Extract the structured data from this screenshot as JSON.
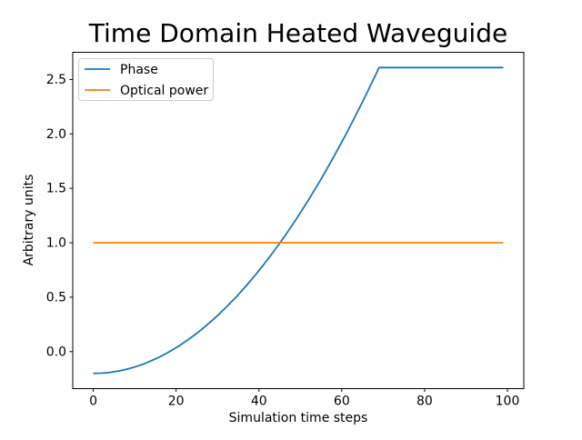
{
  "chart_data": {
    "type": "line",
    "title": "Time Domain Heated Waveguide",
    "xlabel": "Simulation time steps",
    "ylabel": "Arbitrary units",
    "grid": false,
    "legend_position": "upper left",
    "xlim": [
      -4.95,
      103.95
    ],
    "ylim": [
      -0.34,
      2.75
    ],
    "xticks": [
      0,
      20,
      40,
      60,
      80,
      100
    ],
    "xtick_labels": [
      "0",
      "20",
      "40",
      "60",
      "80",
      "100"
    ],
    "yticks": [
      0.0,
      0.5,
      1.0,
      1.5,
      2.0,
      2.5
    ],
    "ytick_labels": [
      "0.0",
      "0.5",
      "1.0",
      "1.5",
      "2.0",
      "2.5"
    ],
    "x": [
      0,
      1,
      2,
      3,
      4,
      5,
      6,
      7,
      8,
      9,
      10,
      11,
      12,
      13,
      14,
      15,
      16,
      17,
      18,
      19,
      20,
      21,
      22,
      23,
      24,
      25,
      26,
      27,
      28,
      29,
      30,
      31,
      32,
      33,
      34,
      35,
      36,
      37,
      38,
      39,
      40,
      41,
      42,
      43,
      44,
      45,
      46,
      47,
      48,
      49,
      50,
      51,
      52,
      53,
      54,
      55,
      56,
      57,
      58,
      59,
      60,
      61,
      62,
      63,
      64,
      65,
      66,
      67,
      68,
      69,
      70,
      71,
      72,
      73,
      74,
      75,
      76,
      77,
      78,
      79,
      80,
      81,
      82,
      83,
      84,
      85,
      86,
      87,
      88,
      89,
      90,
      91,
      92,
      93,
      94,
      95,
      96,
      97,
      98,
      99
    ],
    "series": [
      {
        "name": "Phase",
        "color": "#1f77b4",
        "values": [
          -0.2,
          -0.199,
          -0.198,
          -0.195,
          -0.191,
          -0.185,
          -0.179,
          -0.171,
          -0.162,
          -0.152,
          -0.141,
          -0.129,
          -0.115,
          -0.1,
          -0.084,
          -0.067,
          -0.049,
          -0.029,
          -0.009,
          0.013,
          0.036,
          0.06,
          0.086,
          0.112,
          0.14,
          0.169,
          0.199,
          0.23,
          0.263,
          0.296,
          0.331,
          0.367,
          0.404,
          0.443,
          0.482,
          0.523,
          0.565,
          0.608,
          0.652,
          0.698,
          0.744,
          0.792,
          0.841,
          0.891,
          0.943,
          0.995,
          1.049,
          1.104,
          1.16,
          1.217,
          1.276,
          1.335,
          1.396,
          1.458,
          1.521,
          1.585,
          1.651,
          1.718,
          1.786,
          1.855,
          1.925,
          1.996,
          2.069,
          2.143,
          2.218,
          2.294,
          2.371,
          2.45,
          2.529,
          2.61,
          2.61,
          2.61,
          2.61,
          2.61,
          2.61,
          2.61,
          2.61,
          2.61,
          2.61,
          2.61,
          2.61,
          2.61,
          2.61,
          2.61,
          2.61,
          2.61,
          2.61,
          2.61,
          2.61,
          2.61,
          2.61,
          2.61,
          2.61,
          2.61,
          2.61,
          2.61,
          2.61,
          2.61,
          2.61,
          2.61
        ]
      },
      {
        "name": "Optical power",
        "color": "#ff7f0e",
        "values": [
          1.0,
          1.0,
          1.0,
          1.0,
          1.0,
          1.0,
          1.0,
          1.0,
          1.0,
          1.0,
          1.0,
          1.0,
          1.0,
          1.0,
          1.0,
          1.0,
          1.0,
          1.0,
          1.0,
          1.0,
          1.0,
          1.0,
          1.0,
          1.0,
          1.0,
          1.0,
          1.0,
          1.0,
          1.0,
          1.0,
          1.0,
          1.0,
          1.0,
          1.0,
          1.0,
          1.0,
          1.0,
          1.0,
          1.0,
          1.0,
          1.0,
          1.0,
          1.0,
          1.0,
          1.0,
          1.0,
          1.0,
          1.0,
          1.0,
          1.0,
          1.0,
          1.0,
          1.0,
          1.0,
          1.0,
          1.0,
          1.0,
          1.0,
          1.0,
          1.0,
          1.0,
          1.0,
          1.0,
          1.0,
          1.0,
          1.0,
          1.0,
          1.0,
          1.0,
          1.0,
          1.0,
          1.0,
          1.0,
          1.0,
          1.0,
          1.0,
          1.0,
          1.0,
          1.0,
          1.0,
          1.0,
          1.0,
          1.0,
          1.0,
          1.0,
          1.0,
          1.0,
          1.0,
          1.0,
          1.0,
          1.0,
          1.0,
          1.0,
          1.0,
          1.0,
          1.0,
          1.0,
          1.0,
          1.0,
          1.0
        ]
      }
    ],
    "colors": {
      "background": "#ffffff",
      "text": "#000000",
      "spine": "#000000",
      "legend_border": "#cccccc"
    }
  }
}
